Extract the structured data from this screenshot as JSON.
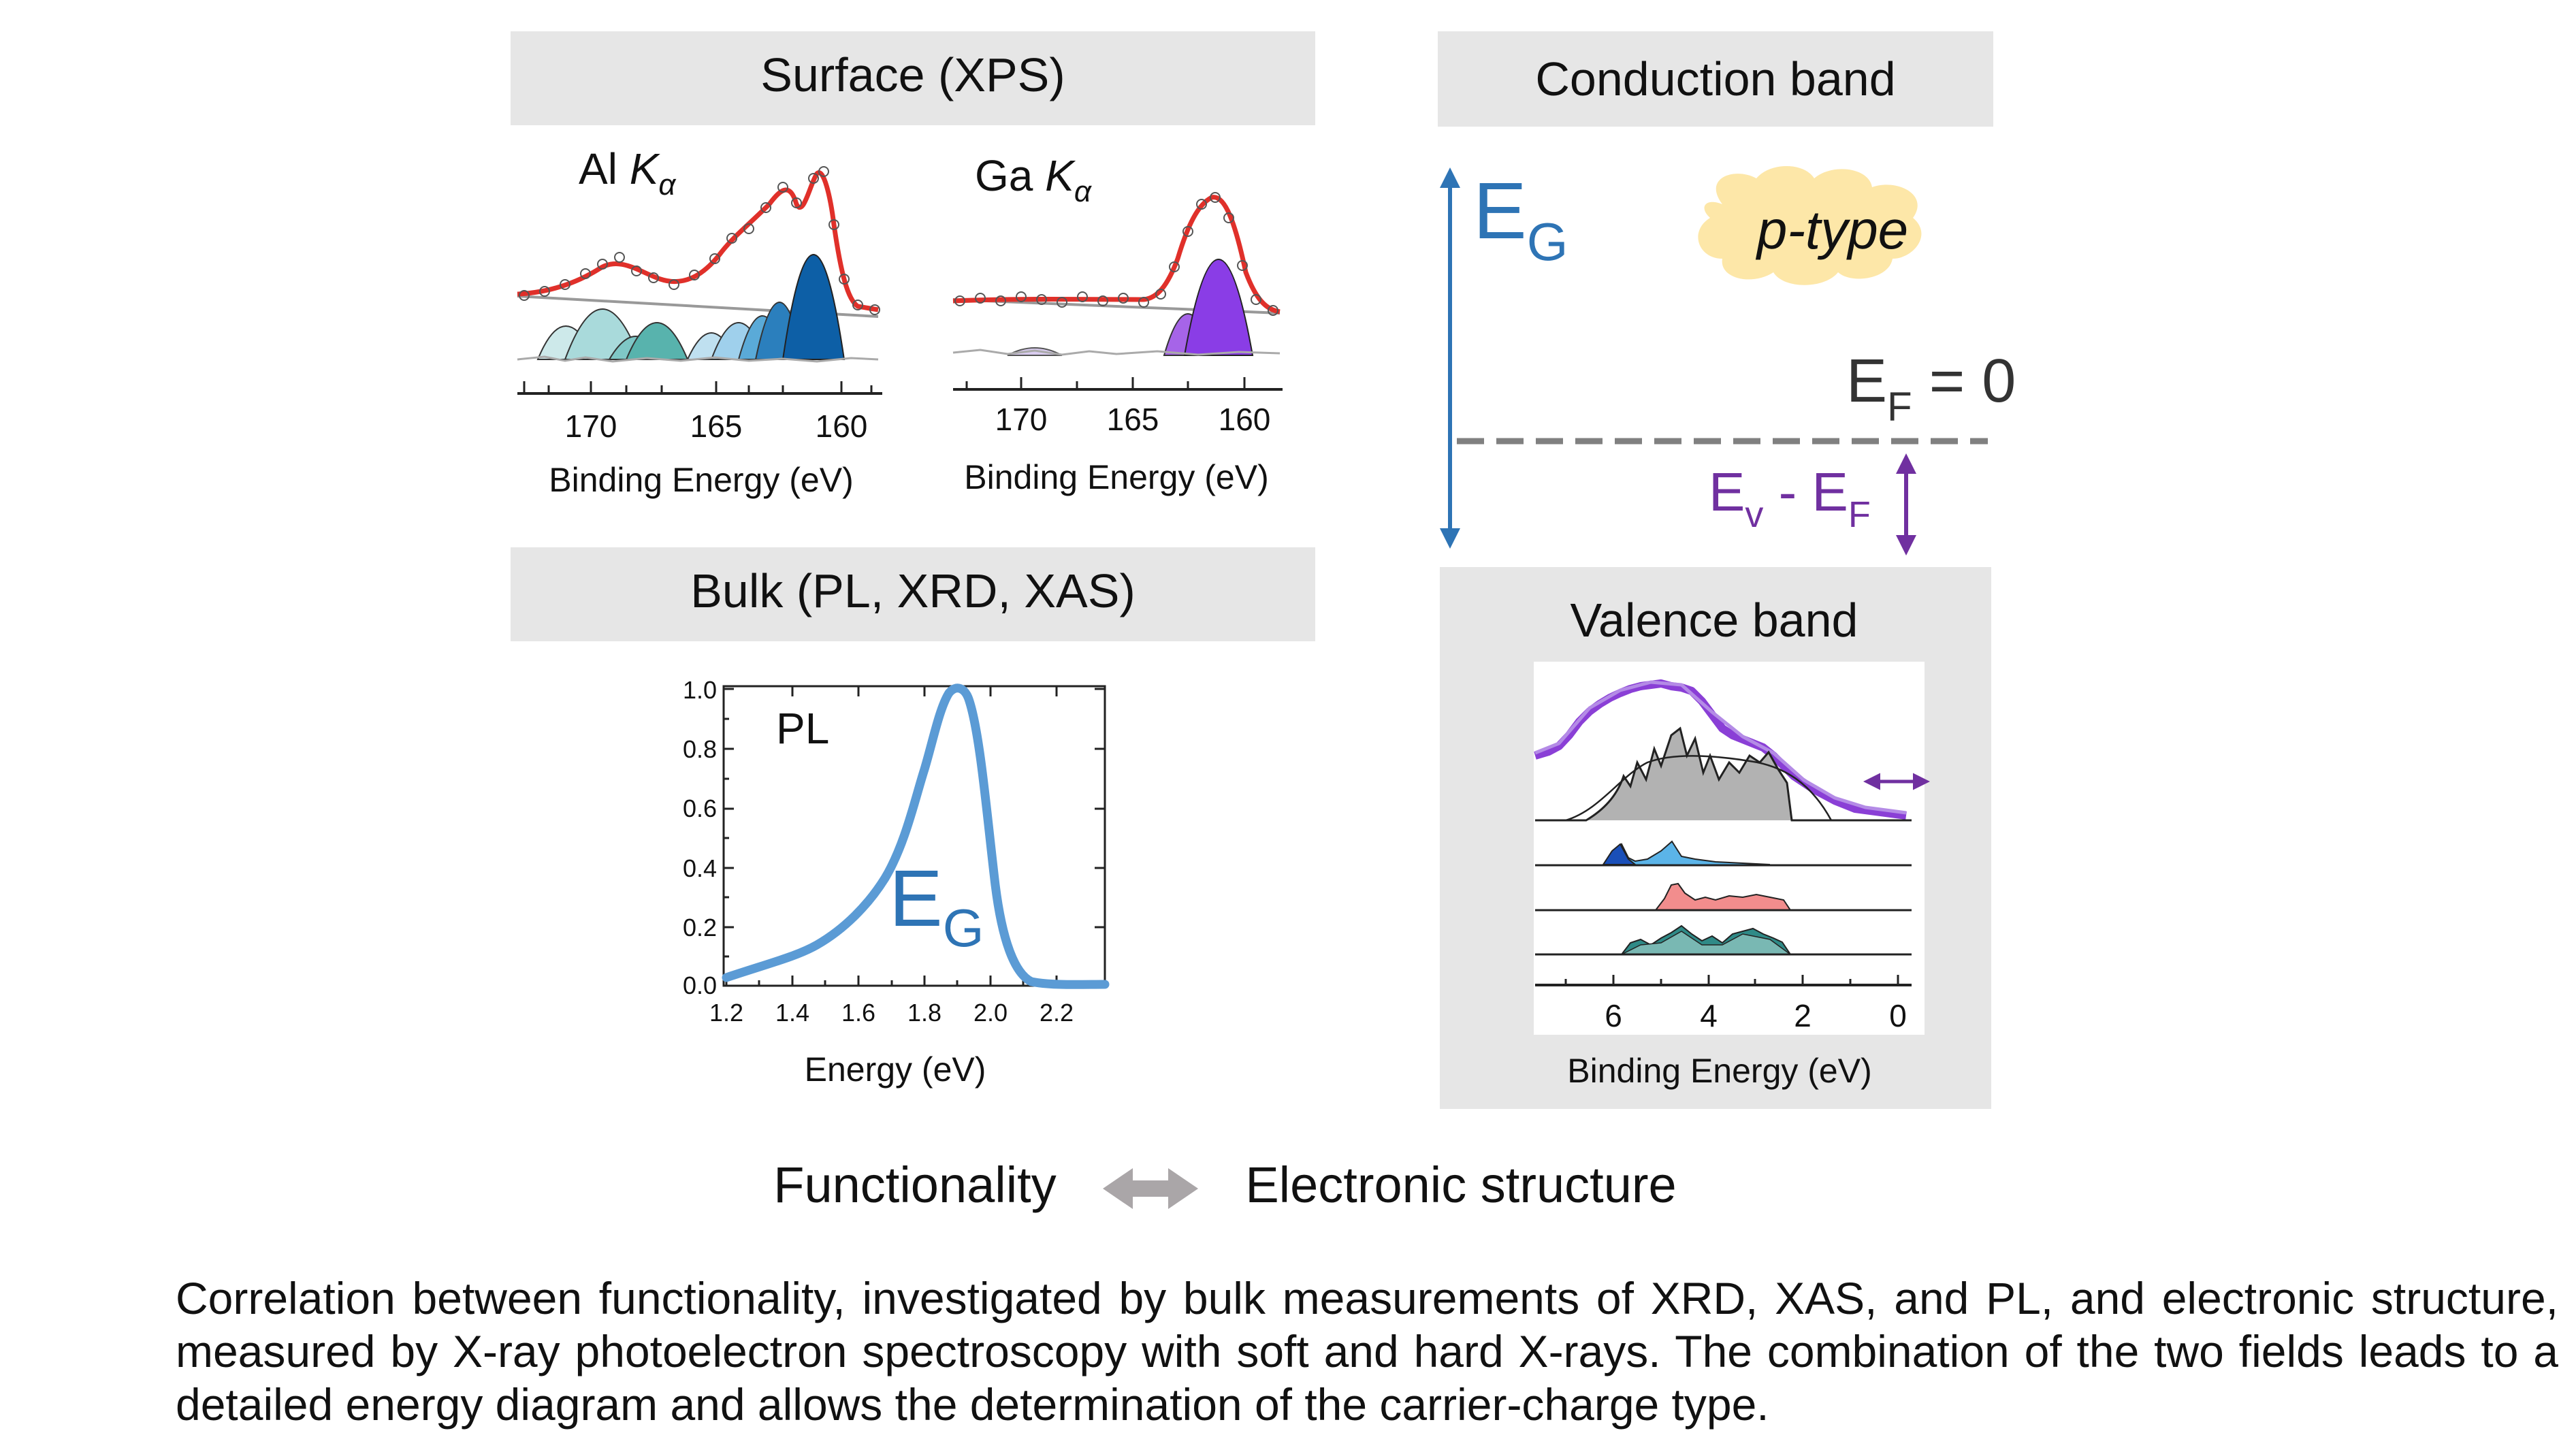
{
  "panels": {
    "surface": {
      "title": "Surface (XPS)"
    },
    "bulk": {
      "title": "Bulk (PL, XRD, XAS)"
    },
    "conduction": {
      "title": "Conduction band"
    },
    "valence": {
      "title": "Valence band"
    }
  },
  "xps": {
    "al": {
      "label_prefix": "Al ",
      "label_k": "K",
      "label_sub": "α",
      "ticks": [
        "170",
        "165",
        "160"
      ],
      "xlabel": "Binding Energy (eV)"
    },
    "ga": {
      "label_prefix": "Ga ",
      "label_k": "K",
      "label_sub": "α",
      "ticks": [
        "170",
        "165",
        "160"
      ],
      "xlabel": "Binding Energy (eV)"
    }
  },
  "pl": {
    "label": "PL",
    "eg_main": "E",
    "eg_sub": "G",
    "yticks": [
      "1.0",
      "0.8",
      "0.6",
      "0.4",
      "0.2",
      "0.0"
    ],
    "xticks": [
      "1.2",
      "1.4",
      "1.6",
      "1.8",
      "2.0",
      "2.2"
    ],
    "xlabel": "Energy (eV)"
  },
  "band_diagram": {
    "eg_main": "E",
    "eg_sub": "G",
    "ptype": "p-type",
    "ef_main": "E",
    "ef_sub": "F",
    "ef_rest": " = 0",
    "ev_main": "E",
    "ev_sub": "v",
    "ev_mid": " - E",
    "ev_sub2": "F"
  },
  "valence_plot": {
    "xticks": [
      "6",
      "4",
      "2",
      "0"
    ],
    "xlabel": "Binding Energy (eV)"
  },
  "bottom": {
    "left": "Functionality",
    "right": "Electronic structure"
  },
  "caption": "Correlation between functionality, investigated by bulk measurements of XRD, XAS, and PL, and electronic structure, measured by X-ray photoelectron spectroscopy with soft and hard X-rays. The combination of the two fields leads to a detailed energy diagram and allows the determination of the carrier-charge type.",
  "colors": {
    "panel_bg": "#e6e6e6",
    "fit_red": "#e0302a",
    "blue_arrow": "#2e74b5",
    "purple": "#7030a0",
    "pl_curve": "#5b9bd5",
    "cloud": "#fde7a8"
  }
}
